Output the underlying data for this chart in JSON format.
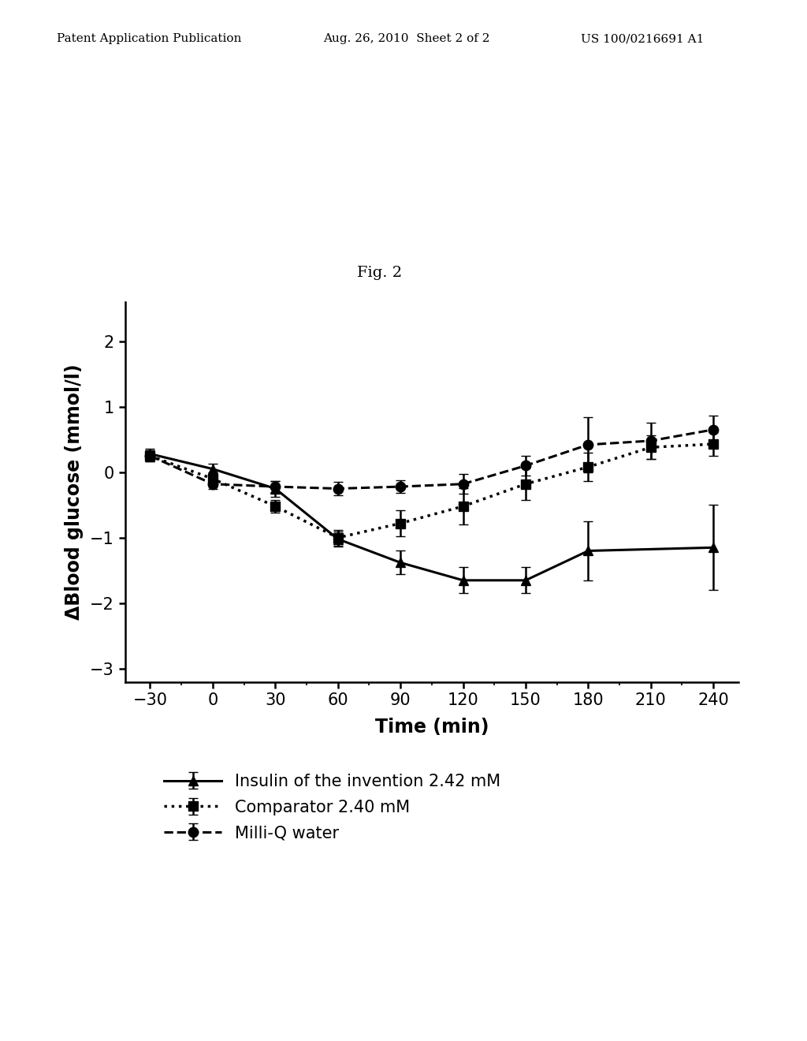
{
  "fig_label": "Fig. 2",
  "header_left": "Patent Application Publication",
  "header_mid": "Aug. 26, 2010  Sheet 2 of 2",
  "header_right": "US 100/0216691 A1",
  "xlabel": "Time (min)",
  "ylabel": "ΔBlood glucose (mmol/l)",
  "xlim": [
    -42,
    252
  ],
  "ylim": [
    -3.2,
    2.6
  ],
  "xticks": [
    -30,
    0,
    30,
    60,
    90,
    120,
    150,
    180,
    210,
    240
  ],
  "yticks": [
    -3,
    -2,
    -1,
    0,
    1,
    2
  ],
  "series": [
    {
      "label": "Insulin of the invention 2.42 mM",
      "x": [
        -30,
        0,
        30,
        60,
        90,
        120,
        150,
        180,
        240
      ],
      "y": [
        0.28,
        0.05,
        -0.25,
        -1.02,
        -1.38,
        -1.65,
        -1.65,
        -1.2,
        -1.15
      ],
      "yerr": [
        0.08,
        0.08,
        0.12,
        0.12,
        0.18,
        0.2,
        0.2,
        0.45,
        0.65
      ],
      "linestyle": "-",
      "marker": "^",
      "color": "#000000",
      "linewidth": 2.2,
      "markersize": 9
    },
    {
      "label": "Comparator 2.40 mM",
      "x": [
        -30,
        0,
        30,
        60,
        90,
        120,
        150,
        180,
        210,
        240
      ],
      "y": [
        0.25,
        -0.1,
        -0.52,
        -1.0,
        -0.78,
        -0.52,
        -0.18,
        0.08,
        0.38,
        0.43
      ],
      "yerr": [
        0.08,
        0.1,
        0.1,
        0.12,
        0.2,
        0.28,
        0.25,
        0.22,
        0.18,
        0.18
      ],
      "linestyle": ":",
      "marker": "s",
      "color": "#000000",
      "linewidth": 2.5,
      "markersize": 9
    },
    {
      "label": "Milli-Q water",
      "x": [
        -30,
        0,
        30,
        60,
        90,
        120,
        150,
        180,
        210,
        240
      ],
      "y": [
        0.25,
        -0.18,
        -0.22,
        -0.25,
        -0.22,
        -0.18,
        0.1,
        0.42,
        0.48,
        0.65
      ],
      "yerr": [
        0.08,
        0.08,
        0.08,
        0.1,
        0.1,
        0.15,
        0.15,
        0.42,
        0.28,
        0.22
      ],
      "linestyle": "--",
      "marker": "o",
      "color": "#000000",
      "linewidth": 2.2,
      "markersize": 9
    }
  ],
  "background_color": "#ffffff",
  "header_fontsize": 11,
  "fig_label_fontsize": 14,
  "label_fontsize": 17,
  "tick_fontsize": 15,
  "legend_fontsize": 15
}
